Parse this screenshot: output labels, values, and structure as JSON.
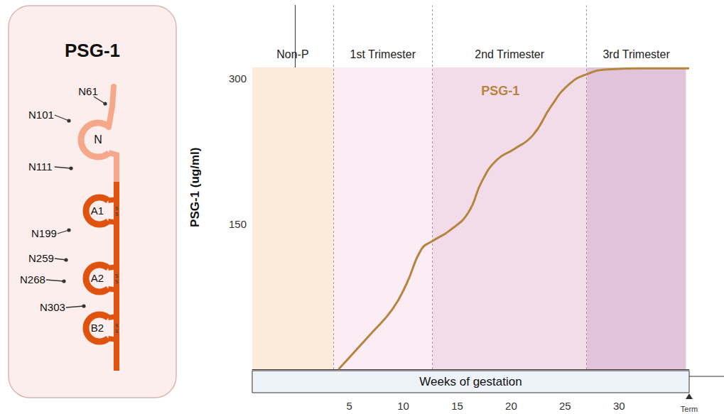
{
  "diagram": {
    "title": "PSG-1",
    "domains": [
      {
        "label": "N",
        "color": "#f5a98a"
      },
      {
        "label": "A1",
        "color": "#e0530f"
      },
      {
        "label": "A2",
        "color": "#e0530f"
      },
      {
        "label": "B2",
        "color": "#e0530f"
      }
    ],
    "sites": [
      "N61",
      "N101",
      "N111",
      "N199",
      "N259",
      "N268",
      "N303"
    ],
    "bond_label": "s"
  },
  "chart_data": {
    "type": "line",
    "y_label": "PSG-1 (ug/ml)",
    "x_label": "Weeks of gestation",
    "x": [
      4,
      7,
      9,
      10.3,
      11.7,
      12.7,
      14.3,
      16,
      17.3,
      18.7,
      20.3,
      22,
      23.7,
      25.3,
      27,
      29,
      32.3,
      36.5
    ],
    "series": [
      {
        "name": "PSG-1",
        "color": "#b5853f",
        "values": [
          0,
          36.6,
          62,
          88,
          124,
          132,
          143,
          161,
          194,
          216,
          227,
          241,
          271,
          293,
          304,
          309,
          310,
          310
        ]
      }
    ],
    "xlim": [
      -4,
      36.5
    ],
    "xticks": [
      5,
      10,
      15,
      20,
      25,
      30,
      {
        "value": 36.5,
        "label": "Term"
      }
    ],
    "ylim": [
      0,
      375
    ],
    "yticks": [
      150,
      300
    ],
    "grid": false,
    "bands": [
      {
        "label": "Non-P",
        "start": -4,
        "end": 3.5,
        "top": 311,
        "color": "#fcebd8"
      },
      {
        "label": "1st Trimester",
        "start": 3.5,
        "end": 12.7,
        "top": 311,
        "color": "#fcedf5"
      },
      {
        "label": "2nd Trimester",
        "start": 12.7,
        "end": 27,
        "top": 311,
        "color": "#f3dcea"
      },
      {
        "label": "3rd Trimester",
        "start": 27,
        "end": 36.2,
        "top": 311,
        "color": "#e2c4da"
      }
    ],
    "annotations": [
      {
        "text": "PSG-1",
        "x": 19,
        "y": 287,
        "color": "#b5853f"
      }
    ]
  }
}
